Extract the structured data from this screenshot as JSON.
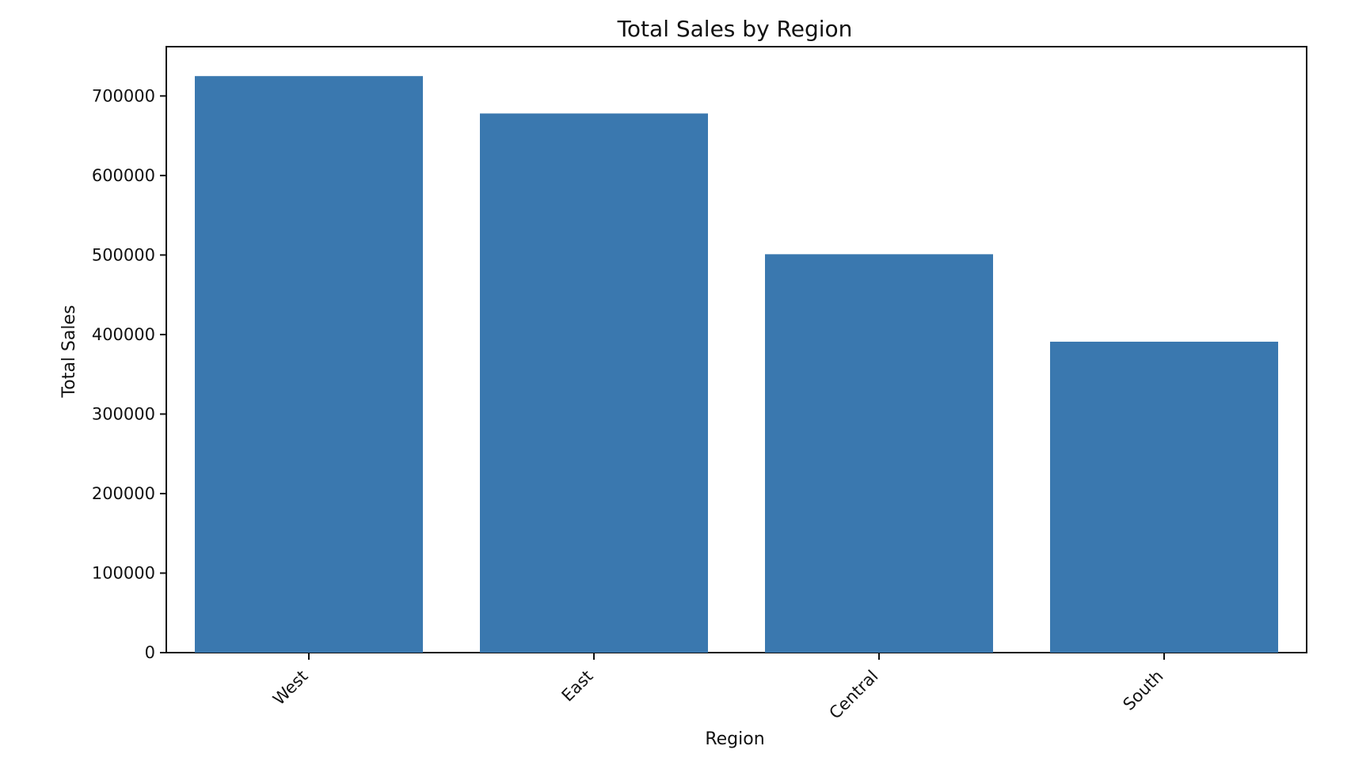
{
  "chart_data": {
    "type": "bar",
    "title": "Total Sales by Region",
    "xlabel": "Region",
    "ylabel": "Total Sales",
    "categories": [
      "West",
      "East",
      "Central",
      "South"
    ],
    "values": [
      725000,
      678000,
      501000,
      391000
    ],
    "ylim": [
      0,
      762000
    ],
    "yticks": [
      0,
      100000,
      200000,
      300000,
      400000,
      500000,
      600000,
      700000
    ],
    "ytick_labels": [
      "0",
      "100000",
      "200000",
      "300000",
      "400000",
      "500000",
      "600000",
      "700000"
    ],
    "bar_color": "#3a78af",
    "grid": false,
    "legend": "none"
  }
}
